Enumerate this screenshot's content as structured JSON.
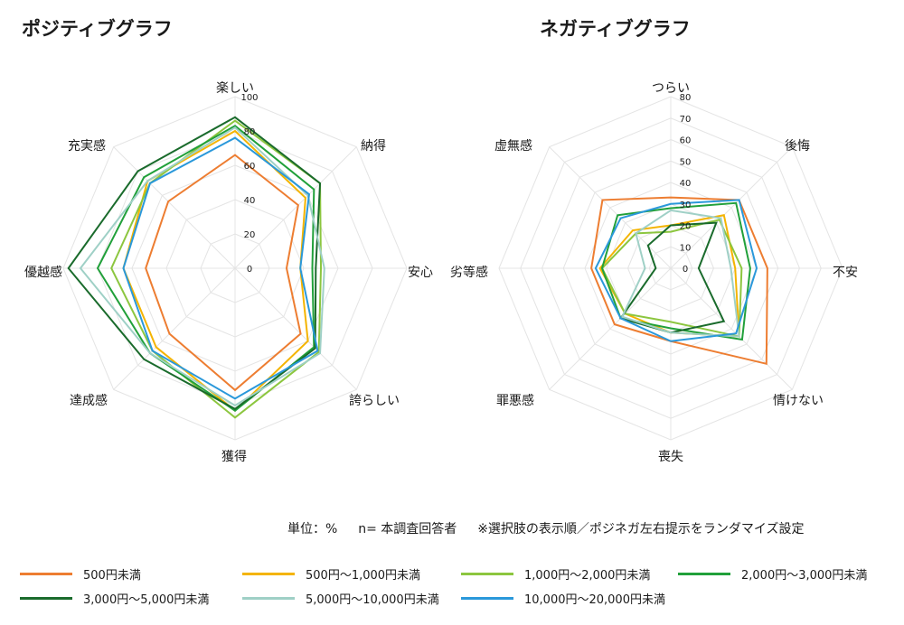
{
  "titles": {
    "positive": "ポジティブグラフ",
    "negative": "ネガティブグラフ"
  },
  "note": {
    "unit": "単位：%",
    "n": "n= 本調査回答者",
    "remark": "※選択肢の表示順／ポジネガ左右提示をランダマイズ設定"
  },
  "chart_data": [
    {
      "type": "radar",
      "title": "ポジティブグラフ",
      "axes": [
        "楽しい",
        "納得",
        "安心",
        "誇らしい",
        "獲得",
        "達成感",
        "優越感",
        "充実感"
      ],
      "rlim": [
        0,
        100
      ],
      "ticks": [
        0,
        20,
        40,
        60,
        80,
        100
      ],
      "series": [
        {
          "name": "500円未満",
          "color": "#ed7d31",
          "values": [
            66,
            52,
            30,
            54,
            71,
            54,
            52,
            55
          ]
        },
        {
          "name": "500円～1,000円未満",
          "color": "#f4b400",
          "values": [
            80,
            58,
            38,
            60,
            83,
            65,
            65,
            72
          ]
        },
        {
          "name": "1,000円～2,000円未満",
          "color": "#8cc63f",
          "values": [
            86,
            70,
            50,
            69,
            87,
            68,
            72,
            70
          ]
        },
        {
          "name": "2,000円～3,000円未満",
          "color": "#21a03a",
          "values": [
            83,
            65,
            45,
            65,
            83,
            70,
            80,
            75
          ]
        },
        {
          "name": "3,000円～5,000円未満",
          "color": "#1a6b2c",
          "values": [
            88,
            70,
            47,
            66,
            82,
            75,
            97,
            80
          ]
        },
        {
          "name": "5,000円～10,000円未満",
          "color": "#9fd0c6",
          "values": [
            82,
            60,
            52,
            70,
            80,
            70,
            90,
            72
          ]
        },
        {
          "name": "10,000円～20,000円未満",
          "color": "#2a98da",
          "values": [
            76,
            61,
            38,
            68,
            76,
            68,
            65,
            70
          ]
        }
      ]
    },
    {
      "type": "radar",
      "title": "ネガティブグラフ",
      "axes": [
        "つらい",
        "後悔",
        "不安",
        "情けない",
        "喪失",
        "罪悪感",
        "劣等感",
        "虚無感"
      ],
      "rlim": [
        0,
        80
      ],
      "ticks": [
        0,
        10,
        20,
        30,
        40,
        50,
        60,
        70,
        80
      ],
      "series": [
        {
          "name": "500円未満",
          "color": "#ed7d31",
          "values": [
            33,
            45,
            45,
            63,
            34,
            37,
            37,
            45
          ]
        },
        {
          "name": "500円～1,000円未満",
          "color": "#f4b400",
          "values": [
            20,
            35,
            30,
            45,
            30,
            30,
            33,
            25
          ]
        },
        {
          "name": "1,000円～2,000円未満",
          "color": "#8cc63f",
          "values": [
            17,
            32,
            33,
            45,
            25,
            30,
            32,
            23
          ]
        },
        {
          "name": "2,000円～3,000円未満",
          "color": "#21a03a",
          "values": [
            28,
            43,
            37,
            47,
            28,
            33,
            32,
            35
          ]
        },
        {
          "name": "3,000円～5,000円未満",
          "color": "#1a6b2c",
          "values": [
            20,
            30,
            13,
            35,
            30,
            33,
            7,
            15
          ]
        },
        {
          "name": "5,000円～10,000円未満",
          "color": "#9fd0c6",
          "values": [
            27,
            33,
            28,
            45,
            30,
            32,
            12,
            23
          ]
        },
        {
          "name": "10,000円～20,000円未満",
          "color": "#2a98da",
          "values": [
            30,
            45,
            40,
            43,
            34,
            33,
            35,
            33
          ]
        }
      ]
    }
  ]
}
